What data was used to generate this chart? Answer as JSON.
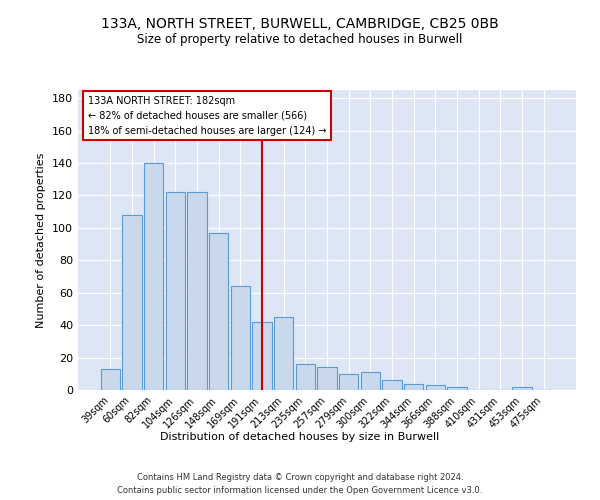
{
  "title": "133A, NORTH STREET, BURWELL, CAMBRIDGE, CB25 0BB",
  "subtitle": "Size of property relative to detached houses in Burwell",
  "xlabel": "Distribution of detached houses by size in Burwell",
  "ylabel": "Number of detached properties",
  "categories": [
    "39sqm",
    "60sqm",
    "82sqm",
    "104sqm",
    "126sqm",
    "148sqm",
    "169sqm",
    "191sqm",
    "213sqm",
    "235sqm",
    "257sqm",
    "279sqm",
    "300sqm",
    "322sqm",
    "344sqm",
    "366sqm",
    "388sqm",
    "410sqm",
    "431sqm",
    "453sqm",
    "475sqm"
  ],
  "values": [
    13,
    108,
    140,
    122,
    122,
    97,
    64,
    42,
    45,
    16,
    14,
    10,
    11,
    6,
    4,
    3,
    2,
    0,
    0,
    2,
    0
  ],
  "bar_color": "#c9d9eb",
  "bar_edge_color": "#5b9bd5",
  "property_label": "133A NORTH STREET: 182sqm",
  "annotation_line1": "← 82% of detached houses are smaller (566)",
  "annotation_line2": "18% of semi-detached houses are larger (124) →",
  "annotation_box_color": "#ffffff",
  "annotation_box_edge": "#cc0000",
  "vline_color": "#cc0000",
  "vline_x": 7.0,
  "ylim": [
    0,
    185
  ],
  "yticks": [
    0,
    20,
    40,
    60,
    80,
    100,
    120,
    140,
    160,
    180
  ],
  "footer_line1": "Contains HM Land Registry data © Crown copyright and database right 2024.",
  "footer_line2": "Contains public sector information licensed under the Open Government Licence v3.0.",
  "bg_color": "#ffffff",
  "plot_bg_color": "#dce6f5"
}
